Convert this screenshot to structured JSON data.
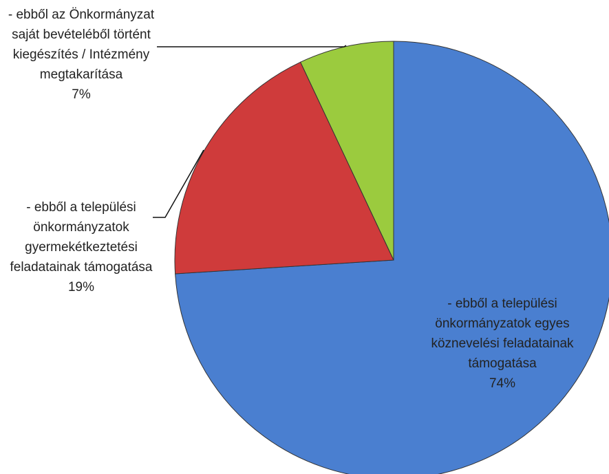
{
  "chart_data": {
    "type": "pie",
    "categories": [
      "- ebből a települési önkormányzatok egyes köznevelési feladatainak támogatása",
      "- ebből a települési önkormányzatok gyermekétkeztetési feladatainak támogatása",
      "- ebből az Önkormányzat saját bevételéből történt kiegészítés / Intézmény megtakarítása"
    ],
    "values": [
      74,
      19,
      7
    ],
    "value_labels": [
      "74%",
      "19%",
      "7%"
    ],
    "colors": [
      "#4a7fd0",
      "#cf3b3b",
      "#9bcb3e"
    ]
  }
}
